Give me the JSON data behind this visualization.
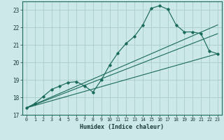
{
  "xlabel": "Humidex (Indice chaleur)",
  "bg_color": "#cde8e8",
  "grid_color": "#aacccc",
  "line_color": "#1a6b5a",
  "xlim": [
    -0.5,
    23.5
  ],
  "ylim": [
    17,
    23.5
  ],
  "yticks": [
    17,
    18,
    19,
    20,
    21,
    22,
    23
  ],
  "xticks": [
    0,
    1,
    2,
    3,
    4,
    5,
    6,
    7,
    8,
    9,
    10,
    11,
    12,
    13,
    14,
    15,
    16,
    17,
    18,
    19,
    20,
    21,
    22,
    23
  ],
  "series": [
    {
      "x": [
        0,
        1,
        2,
        3,
        4,
        5,
        6,
        7,
        8,
        9,
        10,
        11,
        12,
        13,
        14,
        15,
        16,
        17,
        18,
        19,
        20,
        21,
        22,
        23
      ],
      "y": [
        17.4,
        17.65,
        18.05,
        18.45,
        18.65,
        18.85,
        18.9,
        18.65,
        18.3,
        19.0,
        19.85,
        20.55,
        21.1,
        21.5,
        22.15,
        23.1,
        23.25,
        23.05,
        22.15,
        21.75,
        21.75,
        21.65,
        20.65,
        20.5
      ],
      "marker": true
    },
    {
      "x": [
        0,
        23
      ],
      "y": [
        17.4,
        20.5
      ],
      "marker": false
    },
    {
      "x": [
        0,
        23
      ],
      "y": [
        17.4,
        22.15
      ],
      "marker": false
    },
    {
      "x": [
        0,
        23
      ],
      "y": [
        17.4,
        21.65
      ],
      "marker": false
    }
  ]
}
